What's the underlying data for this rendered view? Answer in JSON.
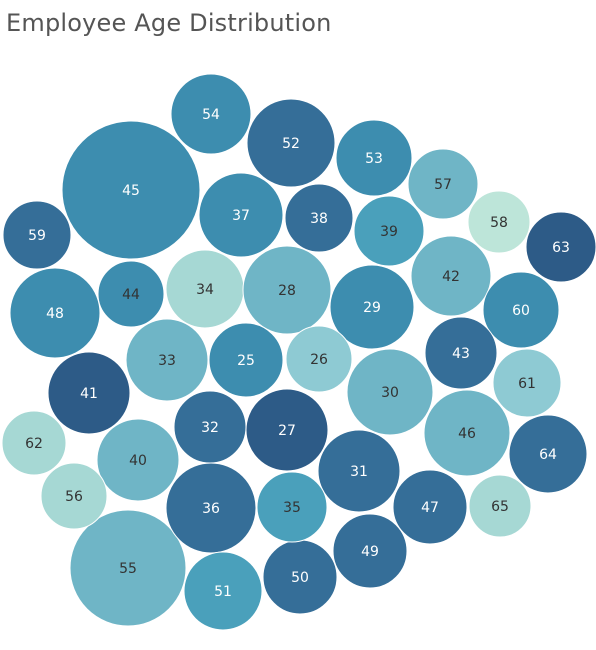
{
  "chart_data": {
    "type": "bubble",
    "title": "Employee Age Distribution",
    "palette": {
      "c1": "#2d5b87",
      "c2": "#356e98",
      "c3": "#3d8daf",
      "c4": "#4aa0bb",
      "c5": "#6fb5c6",
      "c6": "#8ecad3",
      "c7": "#a6d8d4",
      "c8": "#bde5d9",
      "dark_text": "#333333",
      "light_text": "#ffffff"
    },
    "bubbles": [
      {
        "label": "45",
        "color": "c3",
        "text": "light"
      },
      {
        "label": "55",
        "color": "c5",
        "text": "dark"
      },
      {
        "label": "48",
        "color": "c3",
        "text": "light"
      },
      {
        "label": "52",
        "color": "c2",
        "text": "light"
      },
      {
        "label": "37",
        "color": "c3",
        "text": "light"
      },
      {
        "label": "34",
        "color": "c7",
        "text": "dark"
      },
      {
        "label": "28",
        "color": "c5",
        "text": "dark"
      },
      {
        "label": "36",
        "color": "c2",
        "text": "light"
      },
      {
        "label": "30",
        "color": "c5",
        "text": "dark"
      },
      {
        "label": "29",
        "color": "c3",
        "text": "light"
      },
      {
        "label": "27",
        "color": "c1",
        "text": "light"
      },
      {
        "label": "46",
        "color": "c5",
        "text": "dark"
      },
      {
        "label": "31",
        "color": "c2",
        "text": "light"
      },
      {
        "label": "54",
        "color": "c3",
        "text": "light"
      },
      {
        "label": "33",
        "color": "c5",
        "text": "dark"
      },
      {
        "label": "41",
        "color": "c1",
        "text": "light"
      },
      {
        "label": "40",
        "color": "c5",
        "text": "dark"
      },
      {
        "label": "42",
        "color": "c5",
        "text": "dark"
      },
      {
        "label": "64",
        "color": "c2",
        "text": "light"
      },
      {
        "label": "25",
        "color": "c3",
        "text": "light"
      },
      {
        "label": "51",
        "color": "c4",
        "text": "light"
      },
      {
        "label": "53",
        "color": "c3",
        "text": "light"
      },
      {
        "label": "60",
        "color": "c3",
        "text": "light"
      },
      {
        "label": "32",
        "color": "c2",
        "text": "light"
      },
      {
        "label": "50",
        "color": "c2",
        "text": "light"
      },
      {
        "label": "49",
        "color": "c2",
        "text": "light"
      },
      {
        "label": "43",
        "color": "c2",
        "text": "light"
      },
      {
        "label": "47",
        "color": "c2",
        "text": "light"
      },
      {
        "label": "38",
        "color": "c2",
        "text": "light"
      },
      {
        "label": "57",
        "color": "c5",
        "text": "dark"
      },
      {
        "label": "59",
        "color": "c2",
        "text": "light"
      },
      {
        "label": "39",
        "color": "c4",
        "text": "dark"
      },
      {
        "label": "63",
        "color": "c1",
        "text": "light"
      },
      {
        "label": "35",
        "color": "c4",
        "text": "dark"
      },
      {
        "label": "61",
        "color": "c6",
        "text": "dark"
      },
      {
        "label": "44",
        "color": "c3",
        "text": "dark"
      },
      {
        "label": "26",
        "color": "c6",
        "text": "dark"
      },
      {
        "label": "56",
        "color": "c7",
        "text": "dark"
      },
      {
        "label": "62",
        "color": "c7",
        "text": "dark"
      },
      {
        "label": "65",
        "color": "c7",
        "text": "dark"
      },
      {
        "label": "58",
        "color": "c8",
        "text": "dark"
      }
    ]
  }
}
